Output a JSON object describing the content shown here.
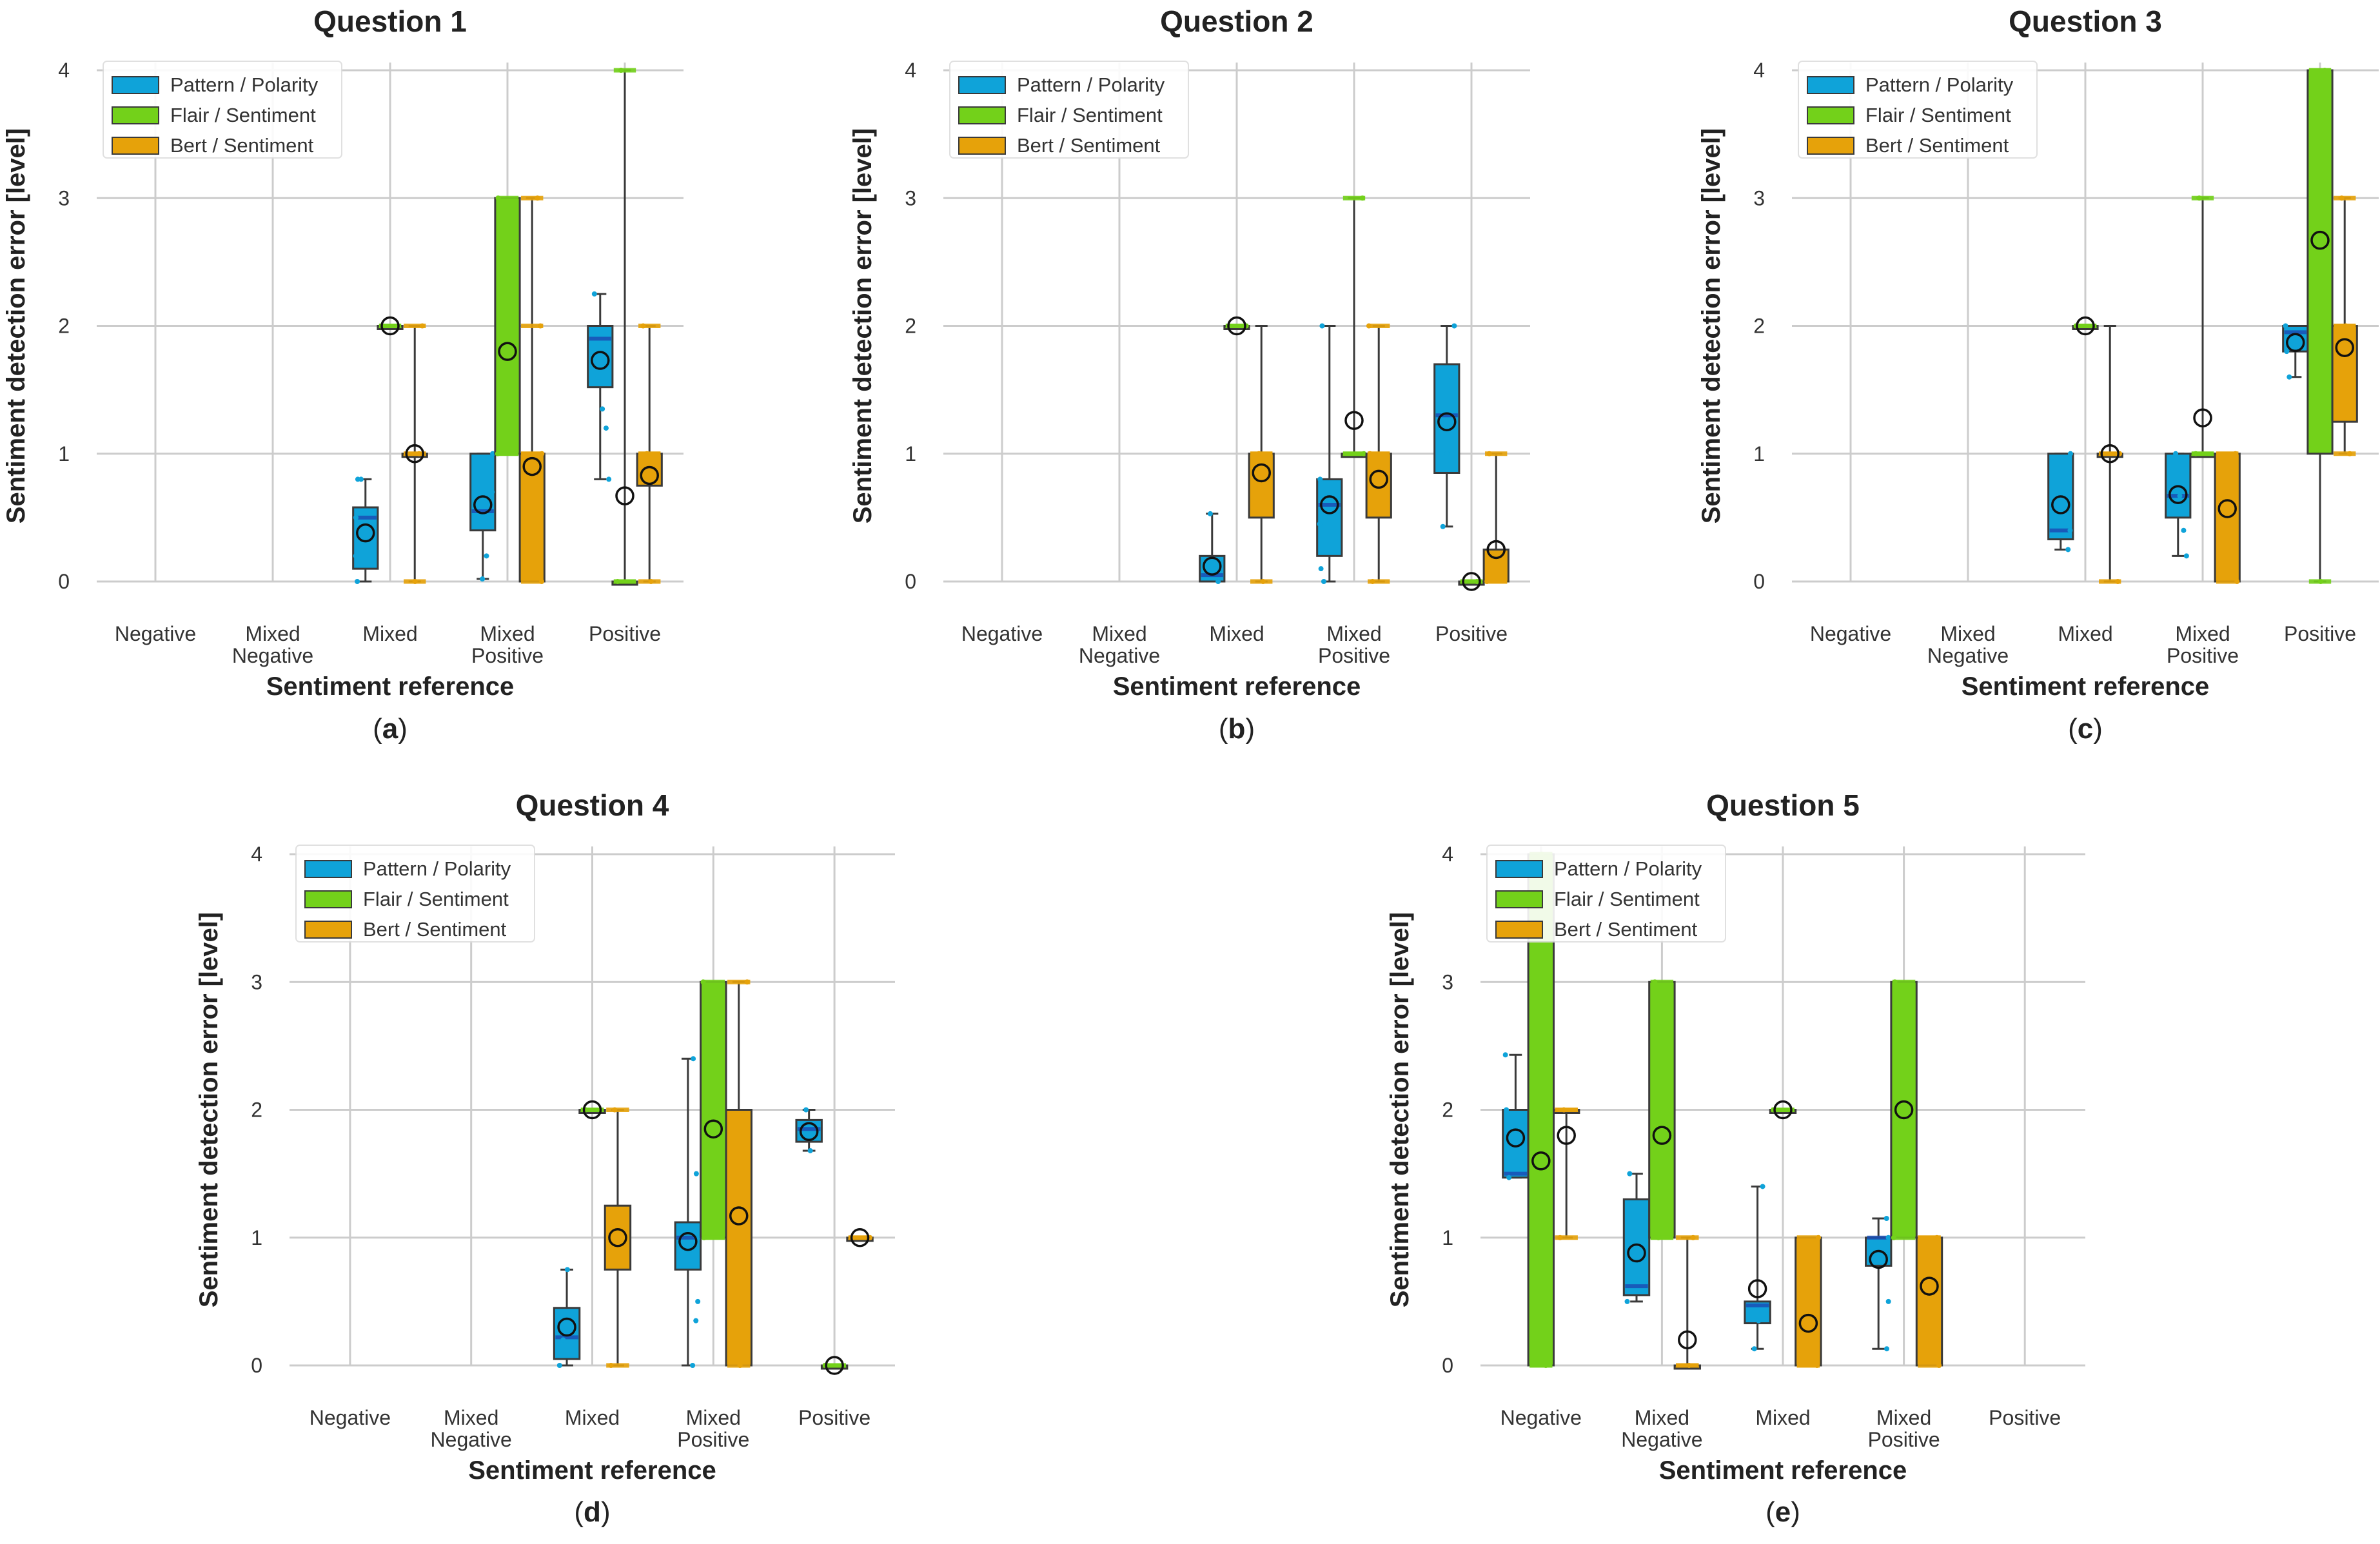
{
  "figure": {
    "captions": [
      "a",
      "b",
      "c",
      "d",
      "e"
    ],
    "colors": {
      "pattern": "#0fa3d9",
      "flair": "#73d11a",
      "bert": "#e6a20a",
      "grid": "#cccccc",
      "median": "#1a4fb5"
    }
  },
  "chart_data": [
    {
      "type": "box",
      "title": "Question 1",
      "xlabel": "Sentiment reference",
      "ylabel": "Sentiment detection error [level]",
      "ylim": [
        0,
        4
      ],
      "yticks": [
        0,
        1,
        2,
        3,
        4
      ],
      "categories": [
        "Negative",
        "Mixed\nNegative",
        "Mixed",
        "Mixed\nPositive",
        "Positive"
      ],
      "legend": [
        "Pattern / Polarity",
        "Flair / Sentiment",
        "Bert / Sentiment"
      ],
      "series": [
        {
          "name": "Pattern / Polarity",
          "boxes": [
            null,
            null,
            {
              "q1": 0.1,
              "median": 0.5,
              "q3": 0.58,
              "whislo": 0,
              "whishi": 0.8,
              "mean": 0.38,
              "points": [
                0,
                0.2,
                0.5,
                0.8,
                0.8
              ]
            },
            {
              "q1": 0.4,
              "median": 0.55,
              "q3": 1.0,
              "whislo": 0.02,
              "whishi": 1.0,
              "mean": 0.6,
              "points": [
                0.02,
                0.2,
                0.5,
                0.7,
                1.0
              ]
            },
            {
              "q1": 1.52,
              "median": 1.9,
              "q3": 2.0,
              "whislo": 0.8,
              "whishi": 2.25,
              "mean": 1.73,
              "points": [
                0.8,
                1.2,
                1.35,
                1.6,
                2.25
              ]
            }
          ]
        },
        {
          "name": "Flair / Sentiment",
          "boxes": [
            null,
            null,
            {
              "q1": 2,
              "median": 2,
              "q3": 2,
              "whislo": 2,
              "whishi": 2,
              "mean": 2.0,
              "points": [
                2
              ]
            },
            {
              "q1": 1,
              "median": 1,
              "q3": 3,
              "whislo": 1,
              "whishi": 3,
              "mean": 1.8,
              "points": [
                1,
                3
              ]
            },
            {
              "q1": 0,
              "median": 0,
              "q3": 0,
              "whislo": 0,
              "whishi": 4,
              "mean": 0.67,
              "points": [
                0,
                4
              ]
            }
          ]
        },
        {
          "name": "Bert / Sentiment",
          "boxes": [
            null,
            null,
            {
              "q1": 1,
              "median": 1,
              "q3": 1,
              "whislo": 0,
              "whishi": 2,
              "mean": 1.0,
              "points": [
                0,
                1,
                2
              ]
            },
            {
              "q1": 0,
              "median": 1,
              "q3": 1,
              "whislo": 0,
              "whishi": 3,
              "mean": 0.9,
              "points": [
                0,
                1,
                2,
                3
              ]
            },
            {
              "q1": 0.75,
              "median": 1,
              "q3": 1,
              "whislo": 0,
              "whishi": 2,
              "mean": 0.83,
              "points": [
                0,
                1,
                2
              ]
            }
          ]
        }
      ]
    },
    {
      "type": "box",
      "title": "Question 2",
      "xlabel": "Sentiment reference",
      "ylabel": "Sentiment detection error [level]",
      "ylim": [
        0,
        4
      ],
      "yticks": [
        0,
        1,
        2,
        3,
        4
      ],
      "categories": [
        "Negative",
        "Mixed\nNegative",
        "Mixed",
        "Mixed\nPositive",
        "Positive"
      ],
      "legend": [
        "Pattern / Polarity",
        "Flair / Sentiment",
        "Bert / Sentiment"
      ],
      "series": [
        {
          "name": "Pattern / Polarity",
          "boxes": [
            null,
            null,
            {
              "q1": 0,
              "median": 0.05,
              "q3": 0.2,
              "whislo": 0,
              "whishi": 0.53,
              "mean": 0.12,
              "points": [
                0,
                0.1,
                0.53
              ]
            },
            {
              "q1": 0.2,
              "median": 0.6,
              "q3": 0.8,
              "whislo": 0,
              "whishi": 2.0,
              "mean": 0.6,
              "points": [
                0,
                0.1,
                0.45,
                0.8,
                2.0
              ]
            },
            {
              "q1": 0.85,
              "median": 1.3,
              "q3": 1.7,
              "whislo": 0.43,
              "whishi": 2.0,
              "mean": 1.25,
              "points": [
                0.43,
                1.0,
                1.6,
                2.0
              ]
            }
          ]
        },
        {
          "name": "Flair / Sentiment",
          "boxes": [
            null,
            null,
            {
              "q1": 2,
              "median": 2,
              "q3": 2,
              "whislo": 2,
              "whishi": 2,
              "mean": 2.0,
              "points": [
                2
              ]
            },
            {
              "q1": 1,
              "median": 1,
              "q3": 1,
              "whislo": 1,
              "whishi": 3,
              "mean": 1.26,
              "points": [
                1,
                3
              ]
            },
            {
              "q1": 0,
              "median": 0,
              "q3": 0,
              "whislo": 0,
              "whishi": 0,
              "mean": 0.0,
              "points": [
                0
              ]
            }
          ]
        },
        {
          "name": "Bert / Sentiment",
          "boxes": [
            null,
            null,
            {
              "q1": 0.5,
              "median": 1,
              "q3": 1,
              "whislo": 0,
              "whishi": 2,
              "mean": 0.85,
              "points": [
                0,
                1
              ]
            },
            {
              "q1": 0.5,
              "median": 1,
              "q3": 1,
              "whislo": 0,
              "whishi": 2,
              "mean": 0.8,
              "points": [
                0,
                1,
                2
              ]
            },
            {
              "q1": 0,
              "median": 0,
              "q3": 0.25,
              "whislo": 0,
              "whishi": 1,
              "mean": 0.25,
              "points": [
                0,
                1
              ]
            }
          ]
        }
      ]
    },
    {
      "type": "box",
      "title": "Question 3",
      "xlabel": "Sentiment reference",
      "ylabel": "Sentiment detection error [level]",
      "ylim": [
        0,
        4
      ],
      "yticks": [
        0,
        1,
        2,
        3,
        4
      ],
      "categories": [
        "Negative",
        "Mixed\nNegative",
        "Mixed",
        "Mixed\nPositive",
        "Positive"
      ],
      "legend": [
        "Pattern / Polarity",
        "Flair / Sentiment",
        "Bert / Sentiment"
      ],
      "series": [
        {
          "name": "Pattern / Polarity",
          "boxes": [
            null,
            null,
            {
              "q1": 0.33,
              "median": 0.4,
              "q3": 1.0,
              "whislo": 0.25,
              "whishi": 1.0,
              "mean": 0.6,
              "points": [
                0.25,
                0.4,
                1.0
              ]
            },
            {
              "q1": 0.5,
              "median": 0.67,
              "q3": 1.0,
              "whislo": 0.2,
              "whishi": 1.0,
              "mean": 0.68,
              "points": [
                0.2,
                0.4,
                0.67,
                1.0
              ]
            },
            {
              "q1": 1.8,
              "median": 1.95,
              "q3": 2.0,
              "whislo": 1.6,
              "whishi": 2.0,
              "mean": 1.87,
              "points": [
                1.6,
                1.8,
                2.0
              ]
            }
          ]
        },
        {
          "name": "Flair / Sentiment",
          "boxes": [
            null,
            null,
            {
              "q1": 2,
              "median": 2,
              "q3": 2,
              "whislo": 2,
              "whishi": 2,
              "mean": 2.0,
              "points": [
                2
              ]
            },
            {
              "q1": 1,
              "median": 1,
              "q3": 1,
              "whislo": 1,
              "whishi": 3,
              "mean": 1.28,
              "points": [
                1,
                3
              ]
            },
            {
              "q1": 1,
              "median": 4,
              "q3": 4,
              "whislo": 0,
              "whishi": 4,
              "mean": 2.67,
              "points": [
                0,
                4
              ]
            }
          ]
        },
        {
          "name": "Bert / Sentiment",
          "boxes": [
            null,
            null,
            {
              "q1": 1,
              "median": 1,
              "q3": 1,
              "whislo": 0,
              "whishi": 2,
              "mean": 1.0,
              "points": [
                0,
                1
              ]
            },
            {
              "q1": 0,
              "median": 1,
              "q3": 1,
              "whislo": 0,
              "whishi": 1,
              "mean": 0.57,
              "points": [
                0,
                1
              ]
            },
            {
              "q1": 1.25,
              "median": 2,
              "q3": 2,
              "whislo": 1,
              "whishi": 3,
              "mean": 1.83,
              "points": [
                1,
                2,
                3
              ]
            }
          ]
        }
      ]
    },
    {
      "type": "box",
      "title": "Question 4",
      "xlabel": "Sentiment reference",
      "ylabel": "Sentiment detection error [level]",
      "ylim": [
        0,
        4
      ],
      "yticks": [
        0,
        1,
        2,
        3,
        4
      ],
      "categories": [
        "Negative",
        "Mixed\nNegative",
        "Mixed",
        "Mixed\nPositive",
        "Positive"
      ],
      "legend": [
        "Pattern / Polarity",
        "Flair / Sentiment",
        "Bert / Sentiment"
      ],
      "series": [
        {
          "name": "Pattern / Polarity",
          "boxes": [
            null,
            null,
            {
              "q1": 0.05,
              "median": 0.22,
              "q3": 0.45,
              "whislo": 0,
              "whishi": 0.75,
              "mean": 0.3,
              "points": [
                0,
                0.2,
                0.75
              ]
            },
            {
              "q1": 0.75,
              "median": 1.0,
              "q3": 1.12,
              "whislo": 0,
              "whishi": 2.4,
              "mean": 0.97,
              "points": [
                0,
                0.35,
                0.5,
                1.0,
                1.5,
                2.4
              ]
            },
            {
              "q1": 1.75,
              "median": 1.85,
              "q3": 1.92,
              "whislo": 1.68,
              "whishi": 2.0,
              "mean": 1.83,
              "points": [
                1.68,
                2.0
              ]
            }
          ]
        },
        {
          "name": "Flair / Sentiment",
          "boxes": [
            null,
            null,
            {
              "q1": 2,
              "median": 2,
              "q3": 2,
              "whislo": 2,
              "whishi": 2,
              "mean": 2.0,
              "points": [
                2
              ]
            },
            {
              "q1": 1,
              "median": 1,
              "q3": 3,
              "whislo": 1,
              "whishi": 3,
              "mean": 1.85,
              "points": [
                1,
                3
              ]
            },
            {
              "q1": 0,
              "median": 0,
              "q3": 0,
              "whislo": 0,
              "whishi": 0,
              "mean": 0.0,
              "points": [
                0
              ]
            }
          ]
        },
        {
          "name": "Bert / Sentiment",
          "boxes": [
            null,
            null,
            {
              "q1": 0.75,
              "median": 1,
              "q3": 1.25,
              "whislo": 0,
              "whishi": 2,
              "mean": 1.0,
              "points": [
                0,
                2
              ]
            },
            {
              "q1": 0,
              "median": 1,
              "q3": 2,
              "whislo": 0,
              "whishi": 3,
              "mean": 1.17,
              "points": [
                0,
                1,
                3
              ]
            },
            {
              "q1": 1,
              "median": 1,
              "q3": 1,
              "whislo": 1,
              "whishi": 1,
              "mean": 1.0,
              "points": [
                1
              ]
            }
          ]
        }
      ]
    },
    {
      "type": "box",
      "title": "Question 5",
      "xlabel": "Sentiment reference",
      "ylabel": "Sentiment detection error [level]",
      "ylim": [
        0,
        4
      ],
      "yticks": [
        0,
        1,
        2,
        3,
        4
      ],
      "categories": [
        "Negative",
        "Mixed\nNegative",
        "Mixed",
        "Mixed\nPositive",
        "Positive"
      ],
      "legend": [
        "Pattern / Polarity",
        "Flair / Sentiment",
        "Bert / Sentiment"
      ],
      "series": [
        {
          "name": "Pattern / Polarity",
          "boxes": [
            {
              "q1": 1.47,
              "median": 1.5,
              "q3": 2.0,
              "whislo": 1.47,
              "whishi": 2.43,
              "mean": 1.78,
              "points": [
                1.47,
                2.0,
                2.43
              ]
            },
            {
              "q1": 0.55,
              "median": 0.62,
              "q3": 1.3,
              "whislo": 0.5,
              "whishi": 1.5,
              "mean": 0.88,
              "points": [
                0.5,
                1.5
              ]
            },
            {
              "q1": 0.33,
              "median": 0.47,
              "q3": 0.5,
              "whislo": 0.13,
              "whishi": 1.4,
              "mean": 0.6,
              "points": [
                0.13,
                0.35,
                1.4
              ]
            },
            {
              "q1": 0.78,
              "median": 1.0,
              "q3": 1.0,
              "whislo": 0.13,
              "whishi": 1.15,
              "mean": 0.83,
              "points": [
                0.13,
                0.5,
                1.0,
                1.15
              ]
            },
            null
          ]
        },
        {
          "name": "Flair / Sentiment",
          "boxes": [
            {
              "q1": 0,
              "median": 0,
              "q3": 4,
              "whislo": 0,
              "whishi": 4,
              "mean": 1.6,
              "points": [
                0,
                4
              ]
            },
            {
              "q1": 1,
              "median": 1,
              "q3": 3,
              "whislo": 1,
              "whishi": 3,
              "mean": 1.8,
              "points": [
                1,
                3
              ]
            },
            {
              "q1": 2,
              "median": 2,
              "q3": 2,
              "whislo": 2,
              "whishi": 2,
              "mean": 2.0,
              "points": [
                2
              ]
            },
            {
              "q1": 1,
              "median": 2,
              "q3": 3,
              "whislo": 1,
              "whishi": 3,
              "mean": 2.0,
              "points": [
                1,
                3
              ]
            },
            null
          ]
        },
        {
          "name": "Bert / Sentiment",
          "boxes": [
            {
              "q1": 2,
              "median": 2,
              "q3": 2,
              "whislo": 1,
              "whishi": 2,
              "mean": 1.8,
              "points": [
                1,
                2
              ]
            },
            {
              "q1": 0,
              "median": 0,
              "q3": 0,
              "whislo": 0,
              "whishi": 1,
              "mean": 0.2,
              "points": [
                0,
                1
              ]
            },
            {
              "q1": 0,
              "median": 0,
              "q3": 1,
              "whislo": 0,
              "whishi": 1,
              "mean": 0.33,
              "points": [
                0,
                1
              ]
            },
            {
              "q1": 0,
              "median": 1,
              "q3": 1,
              "whislo": 0,
              "whishi": 1,
              "mean": 0.62,
              "points": [
                0,
                1
              ]
            },
            null
          ]
        }
      ]
    }
  ]
}
